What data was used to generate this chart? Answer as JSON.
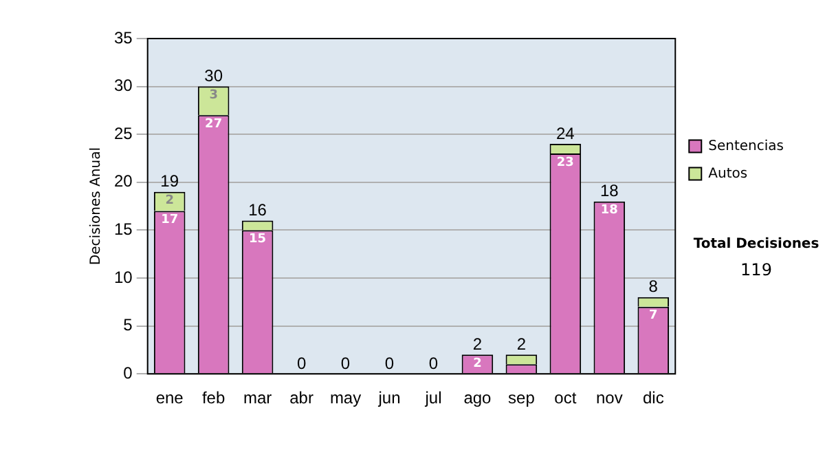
{
  "chart_data": {
    "type": "bar",
    "ylabel": "Decisiones Anual",
    "categories": [
      "ene",
      "feb",
      "mar",
      "abr",
      "may",
      "jun",
      "jul",
      "ago",
      "sep",
      "oct",
      "nov",
      "dic"
    ],
    "series": [
      {
        "name": "Sentencias",
        "color": "#d877be",
        "values": [
          17,
          27,
          15,
          0,
          0,
          0,
          0,
          2,
          1,
          23,
          18,
          7
        ],
        "value_labels": [
          "17",
          "27",
          "15",
          null,
          null,
          null,
          null,
          "2",
          null,
          "23",
          "18",
          "7"
        ]
      },
      {
        "name": "Autos",
        "color": "#cce699",
        "values": [
          2,
          3,
          1,
          0,
          0,
          0,
          0,
          0,
          1,
          1,
          0,
          1
        ],
        "value_labels": [
          "2",
          "3",
          null,
          null,
          null,
          null,
          null,
          null,
          null,
          null,
          null,
          null
        ]
      }
    ],
    "stacked": true,
    "totals": [
      "19",
      "30",
      "16",
      "0",
      "0",
      "0",
      "0",
      "2",
      "2",
      "24",
      "18",
      "8"
    ],
    "ylim": [
      0,
      35
    ],
    "yticks": [
      0,
      5,
      10,
      15,
      20,
      25,
      30,
      35
    ],
    "grid": "y",
    "legend": "right",
    "annotations": [
      "Total Decisiones",
      "119"
    ]
  }
}
